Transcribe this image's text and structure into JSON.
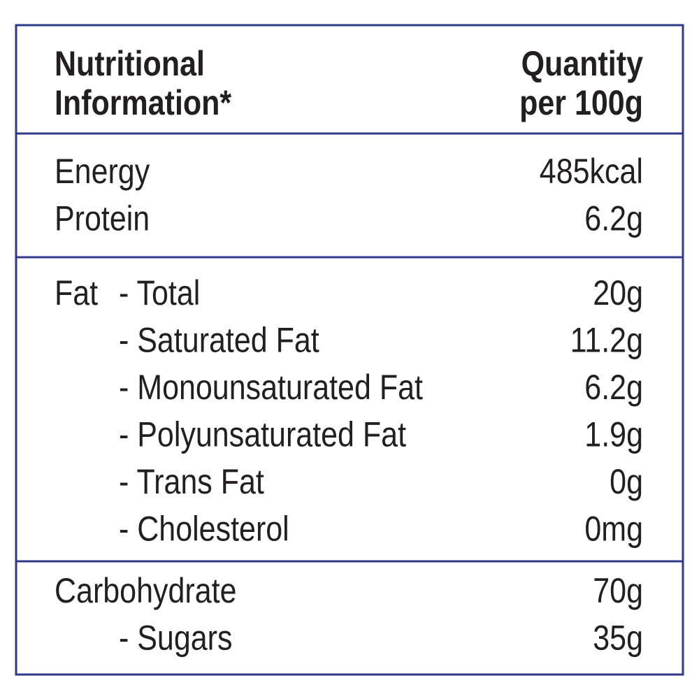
{
  "header": {
    "left": [
      "Nutritional",
      "Information*"
    ],
    "right": [
      "Quantity",
      "per 100g"
    ]
  },
  "sections": [
    {
      "rows": [
        {
          "label": "Energy",
          "value": "485kcal"
        },
        {
          "label": "Protein",
          "value": "6.2g"
        }
      ]
    },
    {
      "rows": [
        {
          "group": "Fat",
          "label": "- Total",
          "value": "20g"
        },
        {
          "label": "- Saturated Fat",
          "value": "11.2g"
        },
        {
          "label": "- Monounsaturated Fat",
          "value": "6.2g"
        },
        {
          "label": "- Polyunsaturated Fat",
          "value": "1.9g"
        },
        {
          "label": "- Trans Fat",
          "value": "0g"
        },
        {
          "label": "- Cholesterol",
          "value": "0mg"
        }
      ]
    },
    {
      "rows": [
        {
          "label": "Carbohydrate",
          "value": "70g"
        },
        {
          "label": "- Sugars",
          "value": "35g"
        }
      ]
    }
  ]
}
